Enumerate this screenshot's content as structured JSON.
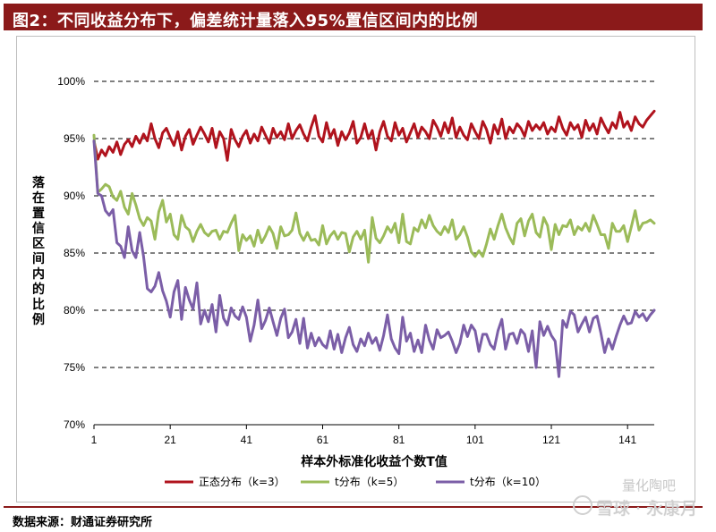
{
  "title": "图2：不同收益分布下，偏差统计量落入95%置信区间内的比例",
  "source": "数据来源：财通证券研究所",
  "watermark": {
    "top": "量化陶吧",
    "main": "雪球 · 永康月"
  },
  "colors": {
    "title_bg": "#8b1a1a",
    "normal": "#b0131d",
    "t5": "#9bbb59",
    "t10": "#7b5ea7"
  },
  "chart_data": {
    "type": "line",
    "xlabel": "样本外标准化收益个数T值",
    "ylabel": "落在置信区间内的比例",
    "x_ticks": [
      "1",
      "21",
      "41",
      "61",
      "81",
      "101",
      "121",
      "141"
    ],
    "y_ticks": [
      "70%",
      "75%",
      "80%",
      "85%",
      "90%",
      "95%",
      "100%"
    ],
    "xlim": [
      1,
      148
    ],
    "ylim": [
      70,
      100
    ],
    "grid": "horizontal dashed",
    "legend_position": "bottom",
    "series": [
      {
        "name": "正态分布（k=3）",
        "color": "#b0131d",
        "values": [
          94.8,
          93.2,
          94.0,
          93.5,
          94.3,
          93.8,
          94.7,
          93.6,
          94.5,
          94.9,
          94.3,
          95.2,
          94.6,
          95.4,
          94.8,
          96.3,
          95.0,
          94.2,
          95.5,
          95.9,
          95.1,
          94.4,
          95.6,
          94.0,
          95.2,
          95.8,
          94.5,
          95.3,
          96.0,
          95.4,
          94.7,
          95.9,
          94.2,
          95.6,
          95.0,
          93.1,
          95.8,
          94.9,
          94.3,
          95.2,
          95.7,
          94.6,
          95.4,
          94.8,
          96.0,
          95.3,
          94.6,
          95.9,
          95.1,
          95.6,
          94.9,
          96.3,
          95.0,
          95.7,
          96.2,
          95.4,
          94.8,
          96.0,
          97.0,
          95.2,
          94.7,
          96.4,
          95.1,
          95.8,
          94.4,
          95.6,
          94.9,
          95.5,
          96.5,
          94.6,
          95.1,
          96.3,
          95.0,
          95.7,
          94.0,
          95.6,
          96.5,
          95.2,
          94.8,
          96.4,
          95.3,
          95.9,
          94.7,
          95.5,
          96.3,
          95.1,
          96.0,
          95.6,
          95.0,
          96.6,
          96.0,
          95.2,
          96.4,
          95.5,
          96.8,
          95.1,
          96.0,
          95.3,
          94.9,
          96.3,
          95.6,
          95.0,
          96.5,
          95.8,
          94.6,
          96.2,
          95.4,
          96.7,
          95.0,
          96.0,
          95.5,
          96.3,
          95.9,
          95.2,
          96.5,
          95.7,
          96.2,
          95.8,
          96.4,
          95.4,
          96.0,
          95.6,
          96.9,
          95.9,
          95.3,
          96.4,
          95.8,
          96.2,
          95.1,
          96.6,
          95.7,
          96.3,
          95.4,
          96.8,
          96.1,
          95.5,
          96.4,
          95.9,
          97.3,
          96.0,
          96.5,
          95.7,
          96.9,
          96.3,
          96.0,
          96.6,
          97.0,
          97.4
        ]
      },
      {
        "name": "t分布（k=5）",
        "color": "#9bbb59",
        "values": [
          95.3,
          90.3,
          90.6,
          91.0,
          90.8,
          89.9,
          89.6,
          90.4,
          89.0,
          88.4,
          90.2,
          89.2,
          88.0,
          87.4,
          88.1,
          87.8,
          86.2,
          88.6,
          89.6,
          87.7,
          88.4,
          86.6,
          86.2,
          88.3,
          87.3,
          87.0,
          86.0,
          86.9,
          87.5,
          86.8,
          86.5,
          86.9,
          87.0,
          86.2,
          86.9,
          86.8,
          87.6,
          88.3,
          85.2,
          86.6,
          86.1,
          86.5,
          85.6,
          87.0,
          85.9,
          86.5,
          87.3,
          86.7,
          85.4,
          87.3,
          86.5,
          86.6,
          87.0,
          88.5,
          86.7,
          86.1,
          86.8,
          86.1,
          86.2,
          85.7,
          87.4,
          85.8,
          86.5,
          86.9,
          86.2,
          86.8,
          86.7,
          85.1,
          86.4,
          86.9,
          86.2,
          87.0,
          84.2,
          88.1,
          86.3,
          85.9,
          86.5,
          87.3,
          86.8,
          87.6,
          85.9,
          88.4,
          86.0,
          85.8,
          87.2,
          86.9,
          87.9,
          87.2,
          88.3,
          87.4,
          86.9,
          86.6,
          87.3,
          86.8,
          87.9,
          86.2,
          86.6,
          87.3,
          86.4,
          85.1,
          84.7,
          85.2,
          84.7,
          85.8,
          87.1,
          86.2,
          87.4,
          88.4,
          87.2,
          86.4,
          85.8,
          87.6,
          88.0,
          86.5,
          87.8,
          88.4,
          86.8,
          86.4,
          88.1,
          87.4,
          85.3,
          87.5,
          86.6,
          87.4,
          87.3,
          87.9,
          86.6,
          87.3,
          87.0,
          87.6,
          86.9,
          88.3,
          87.5,
          86.6,
          86.6,
          85.4,
          87.6,
          86.9,
          86.9,
          87.4,
          86.0,
          87.3,
          88.7,
          87.0,
          87.6,
          87.7,
          87.9,
          87.6
        ]
      },
      {
        "name": "t分布（k=10）",
        "color": "#7b5ea7",
        "values": [
          94.8,
          90.2,
          90.0,
          88.7,
          88.3,
          88.8,
          85.9,
          85.6,
          84.6,
          87.3,
          85.2,
          84.6,
          86.8,
          84.7,
          81.9,
          81.6,
          82.1,
          83.3,
          81.7,
          80.8,
          79.4,
          81.6,
          82.6,
          79.2,
          82.0,
          80.9,
          80.1,
          82.4,
          78.8,
          80.0,
          79.0,
          80.5,
          78.1,
          81.3,
          79.3,
          78.7,
          80.2,
          79.5,
          79.2,
          80.3,
          79.4,
          77.3,
          78.7,
          80.9,
          78.4,
          79.1,
          80.2,
          79.0,
          77.8,
          79.3,
          80.1,
          77.6,
          78.1,
          79.2,
          77.1,
          79.3,
          76.7,
          78.0,
          76.9,
          77.6,
          77.0,
          76.7,
          78.2,
          76.6,
          77.9,
          76.3,
          77.6,
          78.5,
          77.0,
          76.4,
          77.5,
          76.9,
          78.0,
          77.1,
          77.6,
          76.5,
          77.8,
          79.6,
          77.5,
          76.7,
          76.2,
          79.4,
          77.3,
          78.0,
          76.4,
          77.4,
          76.3,
          78.7,
          77.4,
          76.6,
          78.3,
          77.6,
          77.8,
          78.1,
          77.3,
          76.3,
          77.1,
          78.7,
          77.7,
          78.7,
          78.2,
          76.4,
          77.9,
          77.9,
          77.0,
          76.6,
          78.2,
          79.2,
          76.6,
          77.9,
          78.0,
          77.1,
          78.3,
          77.9,
          76.4,
          78.2,
          75.0,
          79.0,
          77.8,
          78.6,
          77.8,
          77.3,
          74.2,
          79.1,
          78.5,
          79.9,
          79.6,
          78.1,
          78.8,
          79.4,
          78.1,
          79.3,
          79.5,
          78.0,
          76.3,
          77.5,
          76.6,
          77.7,
          78.7,
          79.5,
          78.8,
          78.9,
          79.9,
          79.4,
          79.7,
          79.1,
          79.6,
          80.0
        ]
      }
    ]
  }
}
